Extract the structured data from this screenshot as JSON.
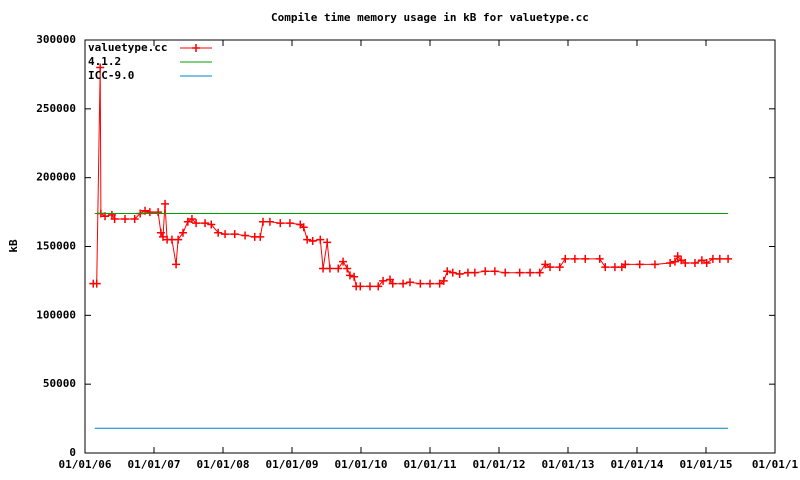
{
  "chart_data": {
    "type": "line",
    "title": "Compile time memory usage in kB for valuetype.cc",
    "y_label": "kB",
    "xlim": [
      2006,
      2016
    ],
    "xticks": [
      {
        "value": 2006,
        "label": "01/01/06"
      },
      {
        "value": 2007,
        "label": "01/01/07"
      },
      {
        "value": 2008,
        "label": "01/01/08"
      },
      {
        "value": 2009,
        "label": "01/01/09"
      },
      {
        "value": 2010,
        "label": "01/01/10"
      },
      {
        "value": 2011,
        "label": "01/01/11"
      },
      {
        "value": 2012,
        "label": "01/01/12"
      },
      {
        "value": 2013,
        "label": "01/01/13"
      },
      {
        "value": 2014,
        "label": "01/01/14"
      },
      {
        "value": 2015,
        "label": "01/01/15"
      },
      {
        "value": 2016,
        "label": "01/01/1"
      }
    ],
    "ylim": [
      0,
      300000
    ],
    "yticks": [
      0,
      50000,
      100000,
      150000,
      200000,
      250000,
      300000
    ],
    "legend": "top-left",
    "series": [
      {
        "name": "valuetype.cc",
        "color": "#ff0000",
        "markers": true,
        "x": [
          2006.12,
          2006.17,
          2006.22,
          2006.23,
          2006.29,
          2006.39,
          2006.43,
          2006.58,
          2006.72,
          2006.8,
          2006.87,
          2006.94,
          2007.06,
          2007.1,
          2007.13,
          2007.16,
          2007.19,
          2007.26,
          2007.32,
          2007.35,
          2007.42,
          2007.49,
          2007.55,
          2007.61,
          2007.74,
          2007.83,
          2007.93,
          2008.03,
          2008.17,
          2008.32,
          2008.46,
          2008.54,
          2008.58,
          2008.68,
          2008.83,
          2008.97,
          2009.12,
          2009.17,
          2009.22,
          2009.3,
          2009.41,
          2009.45,
          2009.51,
          2009.55,
          2009.67,
          2009.74,
          2009.8,
          2009.84,
          2009.9,
          2009.93,
          2009.99,
          2010.13,
          2010.25,
          2010.32,
          2010.42,
          2010.46,
          2010.61,
          2010.71,
          2010.86,
          2011.0,
          2011.14,
          2011.2,
          2011.25,
          2011.33,
          2011.43,
          2011.55,
          2011.65,
          2011.8,
          2011.94,
          2012.09,
          2012.3,
          2012.45,
          2012.59,
          2012.67,
          2012.74,
          2012.88,
          2012.96,
          2013.1,
          2013.25,
          2013.46,
          2013.54,
          2013.68,
          2013.78,
          2013.83,
          2014.04,
          2014.26,
          2014.48,
          2014.55,
          2014.59,
          2014.64,
          2014.7,
          2014.84,
          2014.94,
          2015.01,
          2015.1,
          2015.2,
          2015.32
        ],
        "values": [
          123000,
          123000,
          280000,
          174000,
          172000,
          173000,
          170000,
          170000,
          170000,
          174000,
          176000,
          175000,
          175000,
          160000,
          157000,
          181000,
          155000,
          155000,
          137000,
          155000,
          160000,
          168000,
          170000,
          167000,
          167000,
          166000,
          160000,
          159000,
          159000,
          158000,
          157000,
          157000,
          168000,
          168000,
          167000,
          167000,
          166000,
          164000,
          155000,
          154000,
          155000,
          134000,
          153000,
          134000,
          134000,
          139000,
          134000,
          129000,
          128000,
          121000,
          121000,
          121000,
          121000,
          125000,
          126000,
          123000,
          123000,
          124000,
          123000,
          123000,
          123000,
          125000,
          132000,
          131000,
          130000,
          131000,
          131000,
          132000,
          132000,
          131000,
          131000,
          131000,
          131000,
          137000,
          135000,
          135000,
          141000,
          141000,
          141000,
          141000,
          135000,
          135000,
          135000,
          137000,
          137000,
          137000,
          138000,
          139000,
          143000,
          140000,
          138000,
          138000,
          140000,
          138000,
          141000,
          141000,
          141000
        ]
      },
      {
        "name": "4.1.2",
        "color": "#00a000",
        "x": [
          2006.14,
          2015.32
        ],
        "values": [
          174000,
          174000
        ]
      },
      {
        "name": "ICC-9.0",
        "color": "#0080c0",
        "x": [
          2006.14,
          2015.32
        ],
        "values": [
          18000,
          18000
        ]
      }
    ]
  }
}
